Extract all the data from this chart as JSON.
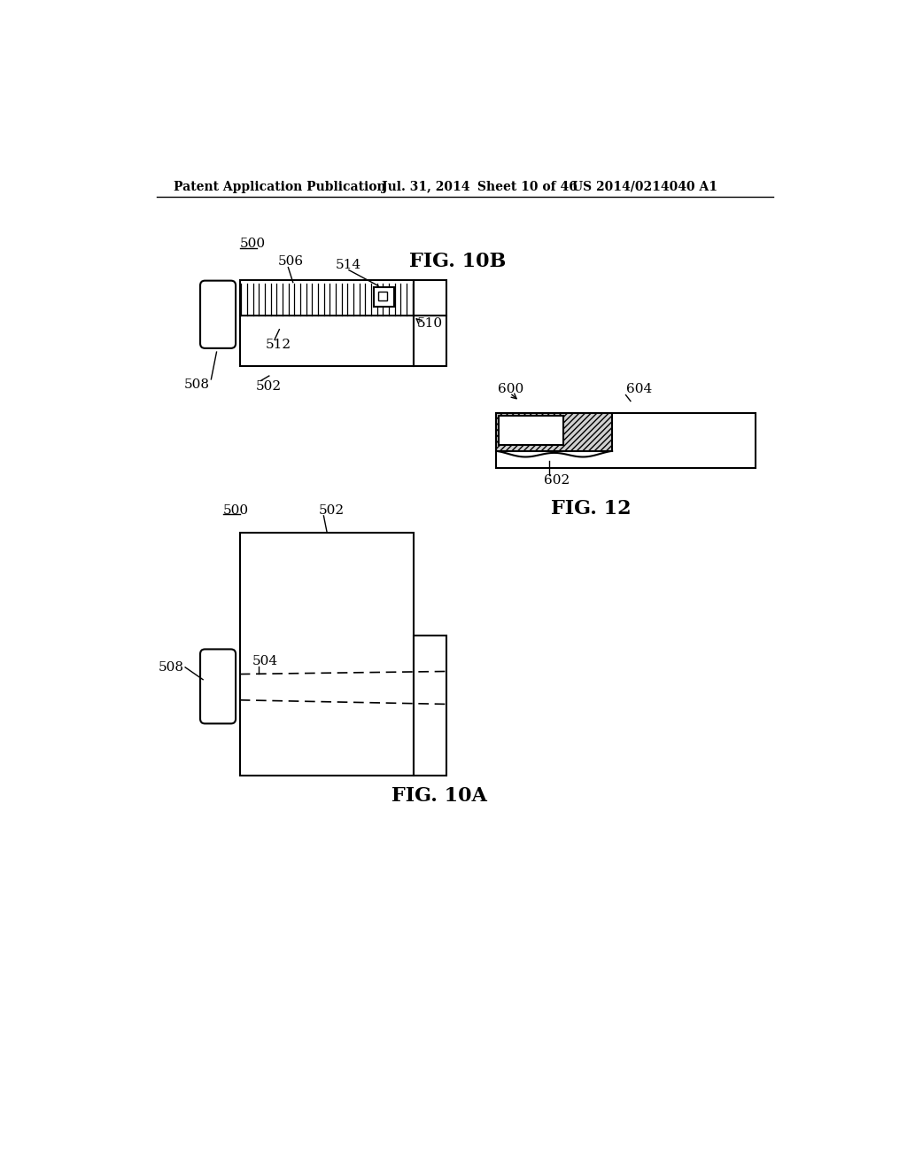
{
  "bg_color": "#ffffff",
  "header_text": "Patent Application Publication",
  "header_date": "Jul. 31, 2014",
  "header_sheet": "Sheet 10 of 46",
  "header_patent": "US 2014/0214040 A1",
  "fig10b_label": "FIG. 10B",
  "fig10a_label": "FIG. 10A",
  "fig12_label": "FIG. 12",
  "label_500_10b": "500",
  "label_502_10b": "502",
  "label_506": "506",
  "label_512": "512",
  "label_514": "514",
  "label_510": "510",
  "label_508_10b": "508",
  "label_500_10a": "500",
  "label_502_10a": "502",
  "label_504": "504",
  "label_508_10a": "508",
  "label_600": "600",
  "label_602": "602",
  "label_604": "604"
}
